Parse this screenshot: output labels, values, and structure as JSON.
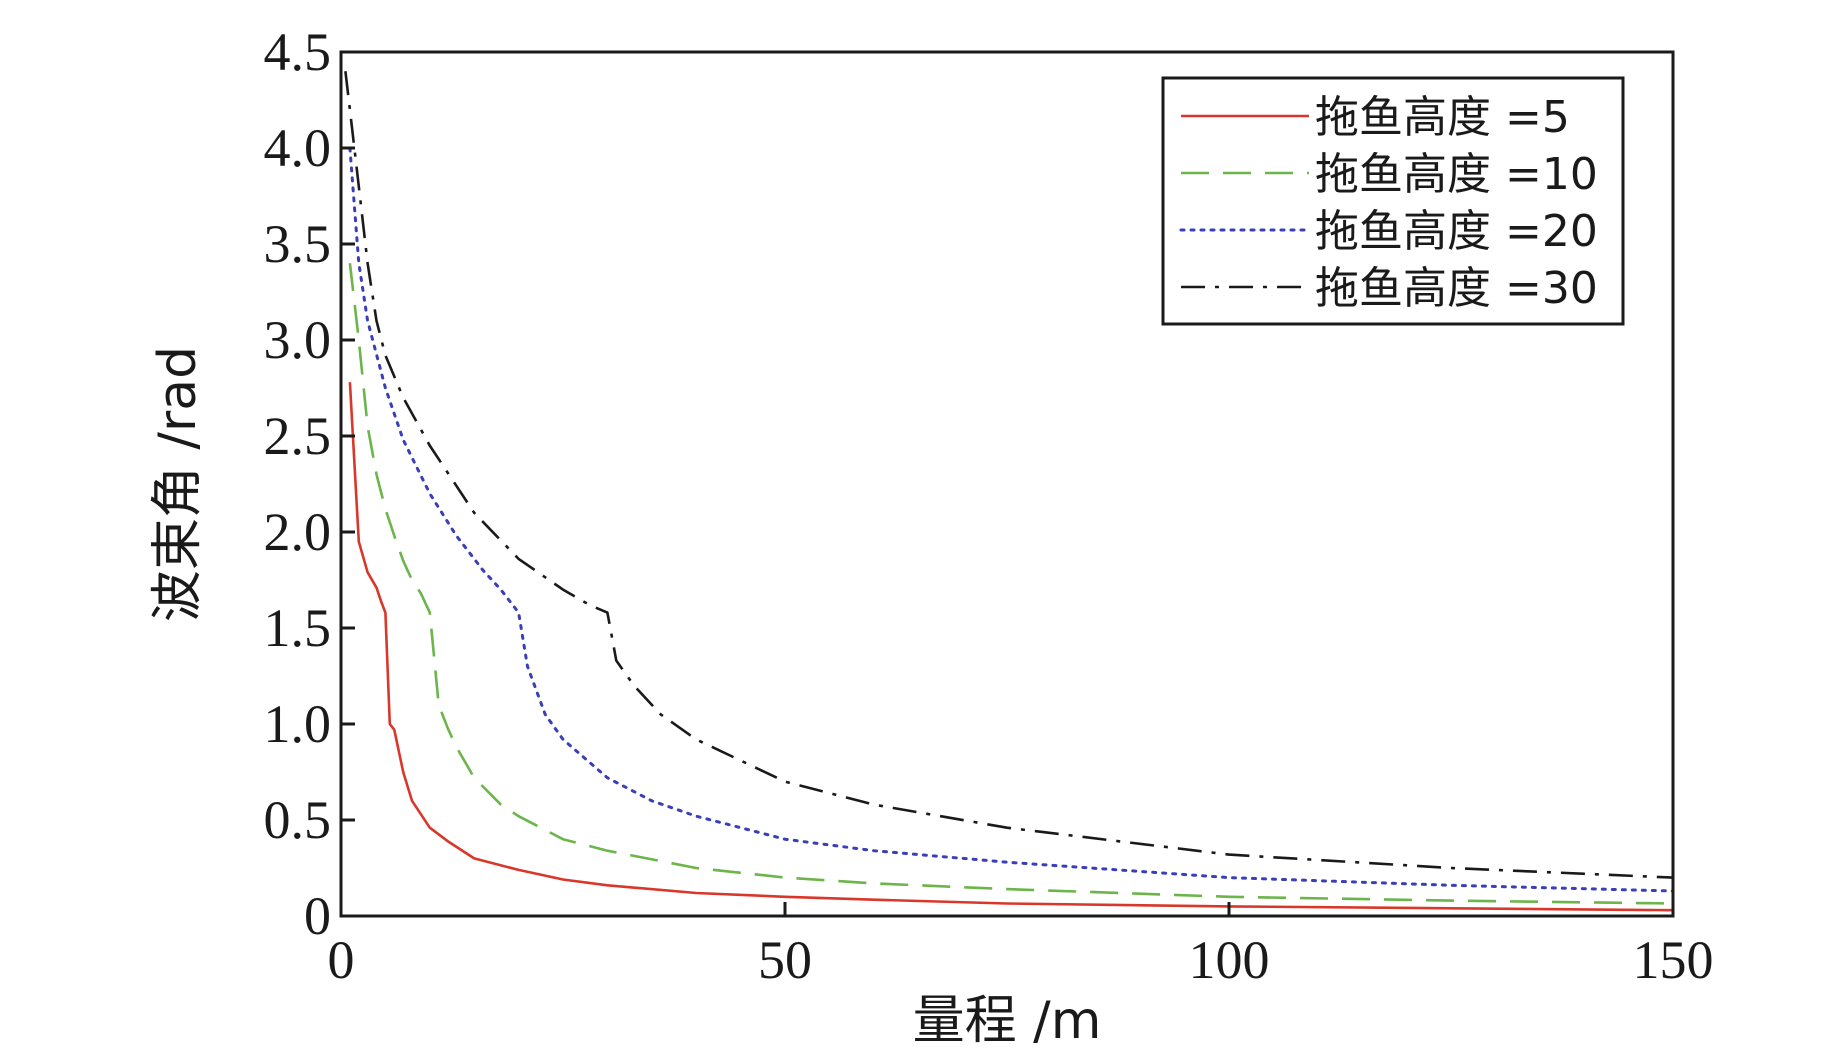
{
  "chart_data": {
    "type": "line",
    "title": "",
    "xlabel": "量程 /m",
    "ylabel": "波束角 /rad",
    "xlim": [
      0,
      150
    ],
    "ylim": [
      0,
      4.5
    ],
    "x_ticks": [
      0,
      50,
      100,
      150
    ],
    "x_tick_labels": [
      "0",
      "50",
      "100",
      "150"
    ],
    "y_ticks": [
      0,
      0.5,
      1.0,
      1.5,
      2.0,
      2.5,
      3.0,
      3.5,
      4.0,
      4.5
    ],
    "y_tick_labels": [
      "0",
      "0.5",
      "1.0",
      "1.5",
      "2.0",
      "2.5",
      "3.0",
      "3.5",
      "4.0",
      "4.5"
    ],
    "grid": false,
    "legend": "top-right",
    "series": [
      {
        "name": "拖鱼高度 =5",
        "color": "#d9372a",
        "dash": "solid",
        "points": [
          [
            1,
            2.78
          ],
          [
            2,
            1.95
          ],
          [
            3,
            1.79
          ],
          [
            4,
            1.71
          ],
          [
            4.5,
            1.64
          ],
          [
            5,
            1.58
          ],
          [
            5.5,
            1.0
          ],
          [
            6,
            0.97
          ],
          [
            7,
            0.75
          ],
          [
            8,
            0.6
          ],
          [
            10,
            0.46
          ],
          [
            12,
            0.39
          ],
          [
            15,
            0.3
          ],
          [
            20,
            0.24
          ],
          [
            25,
            0.19
          ],
          [
            30,
            0.16
          ],
          [
            40,
            0.12
          ],
          [
            50,
            0.1
          ],
          [
            60,
            0.085
          ],
          [
            75,
            0.065
          ],
          [
            100,
            0.05
          ],
          [
            125,
            0.04
          ],
          [
            150,
            0.03
          ]
        ]
      },
      {
        "name": "拖鱼高度 =10",
        "color": "#6bb54a",
        "dash": "dashed",
        "points": [
          [
            1,
            3.4
          ],
          [
            2,
            3.0
          ],
          [
            3,
            2.55
          ],
          [
            4,
            2.3
          ],
          [
            5,
            2.12
          ],
          [
            6,
            1.98
          ],
          [
            7,
            1.85
          ],
          [
            8,
            1.75
          ],
          [
            9,
            1.68
          ],
          [
            10,
            1.58
          ],
          [
            11,
            1.1
          ],
          [
            12,
            0.98
          ],
          [
            13,
            0.88
          ],
          [
            15,
            0.72
          ],
          [
            18,
            0.58
          ],
          [
            20,
            0.52
          ],
          [
            25,
            0.4
          ],
          [
            30,
            0.34
          ],
          [
            40,
            0.25
          ],
          [
            50,
            0.2
          ],
          [
            60,
            0.17
          ],
          [
            75,
            0.14
          ],
          [
            100,
            0.1
          ],
          [
            125,
            0.08
          ],
          [
            150,
            0.065
          ]
        ]
      },
      {
        "name": "拖鱼高度 =20",
        "color": "#3a3fb8",
        "dash": "dotted",
        "points": [
          [
            1,
            4.0
          ],
          [
            2,
            3.4
          ],
          [
            3,
            3.1
          ],
          [
            5,
            2.75
          ],
          [
            7,
            2.48
          ],
          [
            10,
            2.2
          ],
          [
            13,
            1.98
          ],
          [
            16,
            1.8
          ],
          [
            18,
            1.7
          ],
          [
            20,
            1.58
          ],
          [
            21,
            1.3
          ],
          [
            23,
            1.05
          ],
          [
            25,
            0.92
          ],
          [
            30,
            0.72
          ],
          [
            35,
            0.6
          ],
          [
            40,
            0.52
          ],
          [
            50,
            0.4
          ],
          [
            60,
            0.34
          ],
          [
            75,
            0.28
          ],
          [
            100,
            0.2
          ],
          [
            125,
            0.16
          ],
          [
            150,
            0.13
          ]
        ]
      },
      {
        "name": "拖鱼高度 =30",
        "color": "#1a1a1a",
        "dash": "dashdot",
        "points": [
          [
            0.5,
            4.4
          ],
          [
            1,
            4.2
          ],
          [
            2,
            3.8
          ],
          [
            3,
            3.4
          ],
          [
            4,
            3.1
          ],
          [
            5,
            2.92
          ],
          [
            7,
            2.7
          ],
          [
            10,
            2.45
          ],
          [
            15,
            2.1
          ],
          [
            20,
            1.86
          ],
          [
            25,
            1.7
          ],
          [
            28,
            1.62
          ],
          [
            30,
            1.58
          ],
          [
            31,
            1.33
          ],
          [
            33,
            1.2
          ],
          [
            36,
            1.05
          ],
          [
            40,
            0.92
          ],
          [
            50,
            0.7
          ],
          [
            60,
            0.58
          ],
          [
            75,
            0.46
          ],
          [
            100,
            0.32
          ],
          [
            125,
            0.25
          ],
          [
            150,
            0.2
          ]
        ]
      }
    ]
  }
}
